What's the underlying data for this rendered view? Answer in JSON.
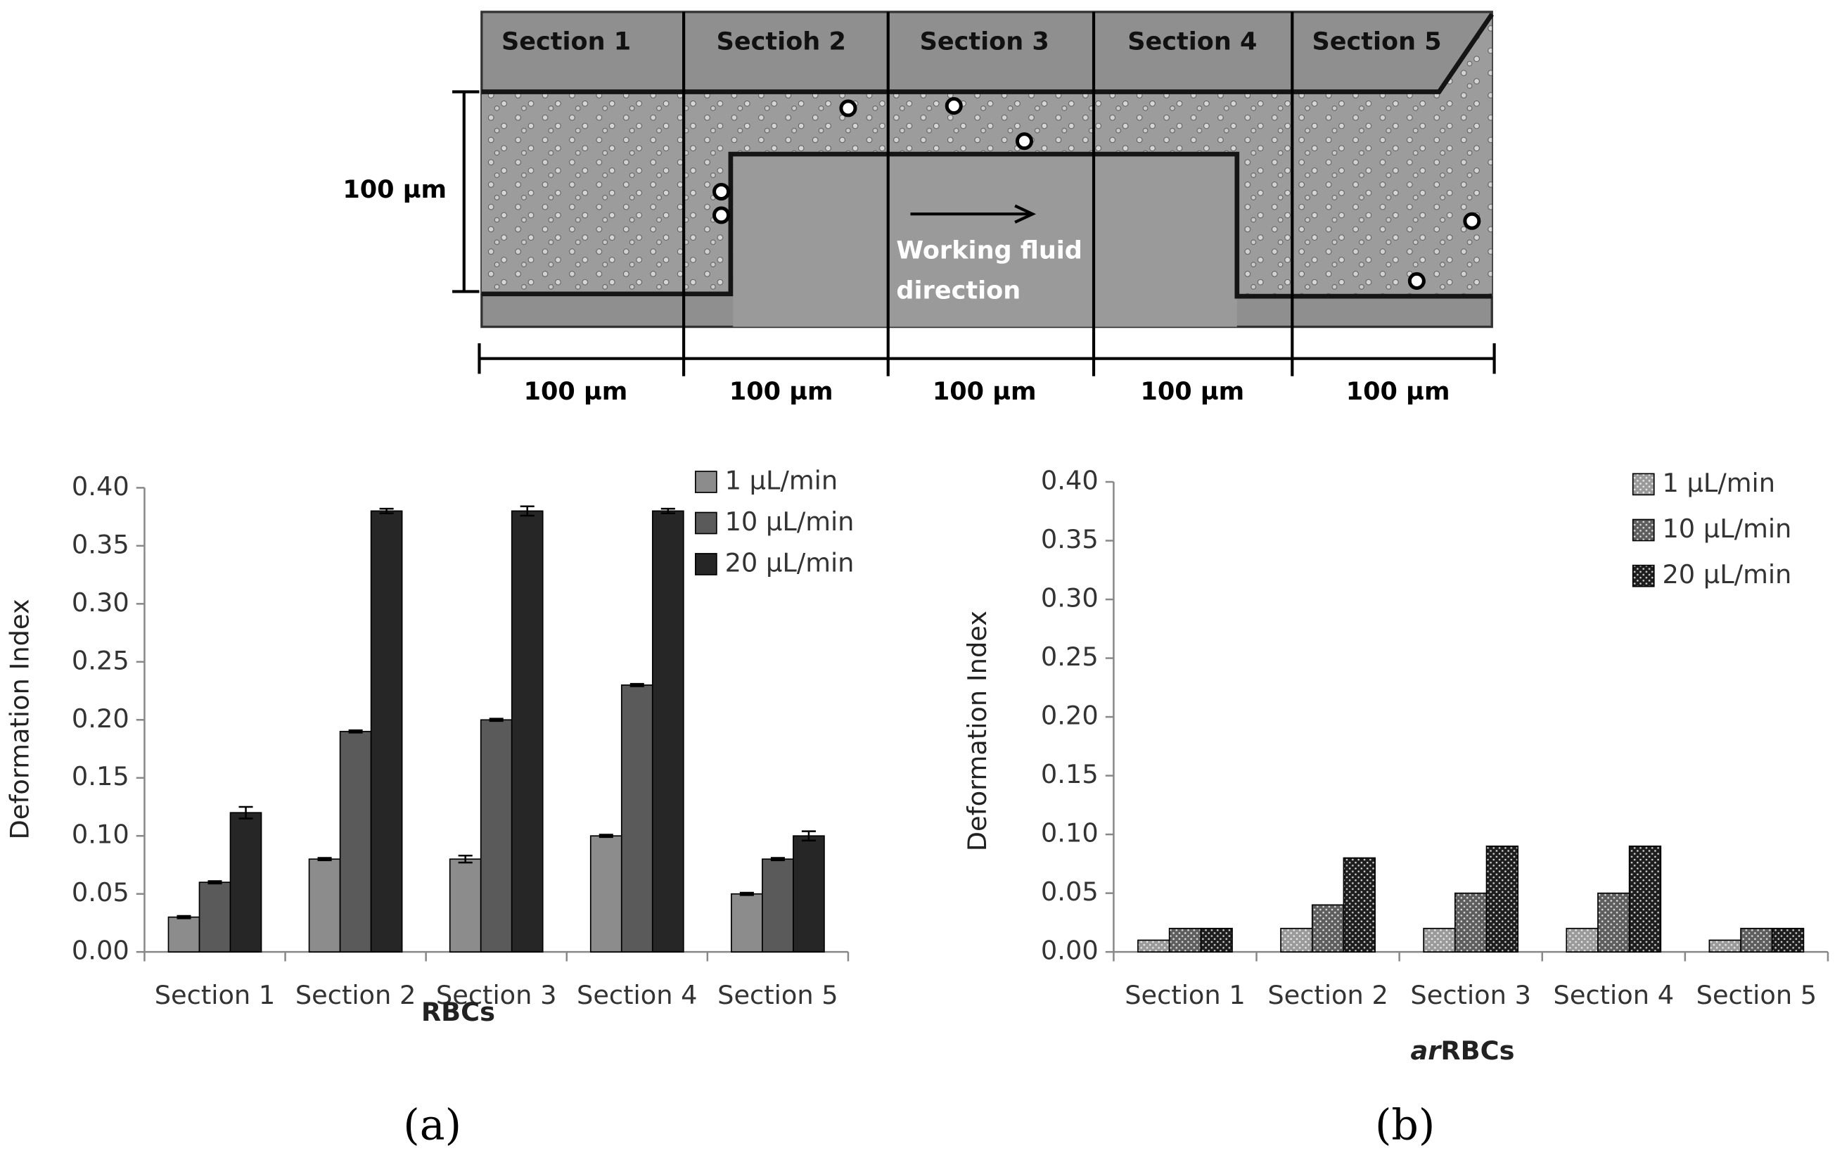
{
  "image": {
    "sections": [
      "Section 1",
      "Sectioh 2",
      "Section 3",
      "Section 4",
      "Section 5"
    ],
    "height_label": "100 µm",
    "width_labels": [
      "100 µm",
      "100 µm",
      "100 µm",
      "100 µm",
      "100 µm"
    ],
    "arrow_label": [
      "Working fluid",
      "direction"
    ]
  },
  "chart_data": [
    {
      "type": "bar",
      "ylabel": "Deformation Index",
      "xlabel": [
        {
          "text": "RBCs"
        }
      ],
      "categories": [
        "Section 1",
        "Section 2",
        "Section 3",
        "Section 4",
        "Section 5"
      ],
      "series": [
        {
          "name": "1 µL/min",
          "color": "#8c8c8c",
          "values": [
            0.03,
            0.08,
            0.08,
            0.1,
            0.05
          ],
          "errors": [
            0.001,
            0.001,
            0.003,
            0.001,
            0.001
          ]
        },
        {
          "name": "10 µL/min",
          "color": "#5a5a5a",
          "values": [
            0.06,
            0.19,
            0.2,
            0.23,
            0.08
          ],
          "errors": [
            0.001,
            0.001,
            0.001,
            0.001,
            0.001
          ]
        },
        {
          "name": "20 µL/min",
          "color": "#262626",
          "values": [
            0.12,
            0.38,
            0.38,
            0.38,
            0.1
          ],
          "errors": [
            0.005,
            0.002,
            0.004,
            0.002,
            0.004
          ]
        }
      ],
      "ylim": [
        0,
        0.4
      ],
      "yticks": [
        {
          "value": 0,
          "label": "0.00"
        },
        {
          "value": 0.05,
          "label": "0.05"
        },
        {
          "value": 0.1,
          "label": "0.10"
        },
        {
          "value": 0.15,
          "label": "0.15"
        },
        {
          "value": 0.2,
          "label": "0.20"
        },
        {
          "value": 0.25,
          "label": "0.25"
        },
        {
          "value": 0.3,
          "label": "0.30"
        },
        {
          "value": 0.35,
          "label": "0.35"
        },
        {
          "value": 0.4,
          "label": "0.40"
        }
      ],
      "pattern": false,
      "legend": "top-right",
      "panel": "(a)"
    },
    {
      "type": "bar",
      "ylabel": "Deformation Index",
      "xlabel": [
        {
          "text": "ar",
          "italic": true
        },
        {
          "text": "RBCs"
        }
      ],
      "categories": [
        "Section 1",
        "Section 2",
        "Section 3",
        "Section 4",
        "Section 5"
      ],
      "series": [
        {
          "name": "1 µL/min",
          "color": "#9a9a9a",
          "values": [
            0.01,
            0.02,
            0.02,
            0.02,
            0.01
          ]
        },
        {
          "name": "10 µL/min",
          "color": "#5e5e5e",
          "values": [
            0.02,
            0.04,
            0.05,
            0.05,
            0.02
          ]
        },
        {
          "name": "20 µL/min",
          "color": "#1e1e1e",
          "values": [
            0.02,
            0.08,
            0.09,
            0.09,
            0.02
          ]
        }
      ],
      "ylim": [
        0,
        0.4
      ],
      "yticks": [
        {
          "value": 0,
          "label": "0.00"
        },
        {
          "value": 0.05,
          "label": "0.05"
        },
        {
          "value": 0.1,
          "label": "0.10"
        },
        {
          "value": 0.15,
          "label": "0.15"
        },
        {
          "value": 0.2,
          "label": "0.20"
        },
        {
          "value": 0.25,
          "label": "0.25"
        },
        {
          "value": 0.3,
          "label": "0.30"
        },
        {
          "value": 0.35,
          "label": "0.35"
        },
        {
          "value": 0.4,
          "label": "0.40"
        }
      ],
      "pattern": true,
      "legend": "top-right",
      "panel": "(b)"
    }
  ]
}
